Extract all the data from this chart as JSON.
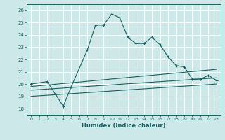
{
  "title": "",
  "xlabel": "Humidex (Indice chaleur)",
  "background_color": "#cce8e8",
  "grid_color": "#ffffff",
  "line_color": "#1a6060",
  "xlim": [
    -0.5,
    23.5
  ],
  "ylim": [
    17.5,
    26.5
  ],
  "xticks": [
    0,
    1,
    2,
    3,
    4,
    5,
    6,
    7,
    8,
    9,
    10,
    11,
    12,
    13,
    14,
    15,
    16,
    17,
    18,
    19,
    20,
    21,
    22,
    23
  ],
  "yticks": [
    18,
    19,
    20,
    21,
    22,
    23,
    24,
    25,
    26
  ],
  "main_series": {
    "x": [
      0,
      2,
      3,
      4,
      5,
      7,
      8,
      9,
      10,
      11,
      12,
      13,
      14,
      15,
      16,
      17,
      18,
      19,
      20,
      21,
      22,
      23
    ],
    "y": [
      20.0,
      20.2,
      19.2,
      18.2,
      19.8,
      22.8,
      24.8,
      24.8,
      25.7,
      25.4,
      23.8,
      23.3,
      23.3,
      23.8,
      23.2,
      22.2,
      21.5,
      21.4,
      20.4,
      20.4,
      20.7,
      20.3
    ]
  },
  "flat_series": [
    {
      "x": [
        0,
        23
      ],
      "y": [
        19.8,
        21.2
      ]
    },
    {
      "x": [
        0,
        23
      ],
      "y": [
        19.5,
        20.5
      ]
    },
    {
      "x": [
        0,
        23
      ],
      "y": [
        19.0,
        20.0
      ]
    }
  ]
}
